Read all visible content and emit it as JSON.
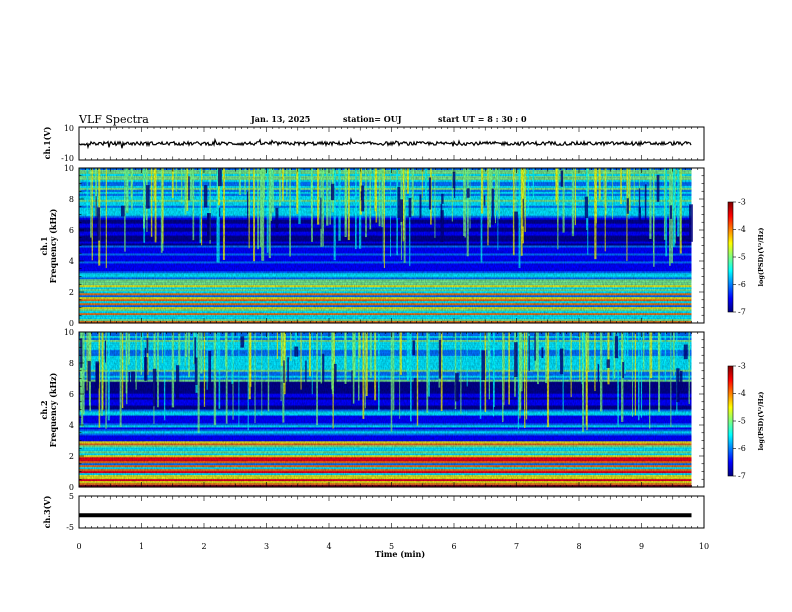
{
  "header": {
    "title": "VLF Spectra",
    "date": "Jan. 13, 2025",
    "station": "station= OUJ",
    "start": "start  UT =   8  : 30 : 0"
  },
  "colors": {
    "jet": [
      "#00007f",
      "#0000ff",
      "#007fff",
      "#00ffff",
      "#7fff7f",
      "#ffff00",
      "#ff7f00",
      "#ff0000",
      "#7f0000"
    ]
  },
  "chart_data": [
    {
      "type": "line",
      "panel": "ch1-waveform",
      "ylabel": "ch.1(V)",
      "ylim": [
        -10,
        10
      ],
      "ytick_labels": [
        "10",
        "-10"
      ],
      "mean_value": 0,
      "note_text": ""
    },
    {
      "type": "heatmap",
      "panel": "ch1-spectrogram",
      "ylabel": "ch.1 Frequency (kHz)",
      "ylabel_line1": "ch.1",
      "ylabel_line2": "Frequency  (kHz)",
      "ylim": [
        0,
        10
      ],
      "yticks": [
        "0",
        "2",
        "4",
        "6",
        "8",
        "10"
      ],
      "colorbar": {
        "label": "log(PSD)(V²/Hz)",
        "range": [
          -7,
          -3
        ],
        "ticks": [
          "-3",
          "-4",
          "-5",
          "-6",
          "-7"
        ]
      }
    },
    {
      "type": "heatmap",
      "panel": "ch2-spectrogram",
      "ylabel": "ch.2 Frequency (kHz)",
      "ylabel_line1": "ch.2",
      "ylabel_line2": "Frequency  (kHz)",
      "ylim": [
        0,
        10
      ],
      "yticks": [
        "0",
        "2",
        "4",
        "6",
        "8",
        "10"
      ],
      "colorbar": {
        "label": "log(PSD)(V²/Hz)",
        "range": [
          -7,
          -3
        ],
        "ticks": [
          "-3",
          "-4",
          "-5",
          "-6",
          "-7"
        ]
      }
    },
    {
      "type": "line",
      "panel": "ch3-waveform",
      "ylabel": "ch.3(V)",
      "ylim": [
        -5,
        5
      ],
      "ytick_labels": [
        "5",
        "-5"
      ],
      "x": [
        0,
        9.8
      ],
      "y": [
        -1,
        -1
      ]
    }
  ],
  "xaxis": {
    "label": "Time  (min)",
    "range": [
      0,
      10
    ],
    "ticks": [
      "0",
      "1",
      "2",
      "3",
      "4",
      "5",
      "6",
      "7",
      "8",
      "9",
      "10"
    ],
    "data_end": 9.8
  }
}
